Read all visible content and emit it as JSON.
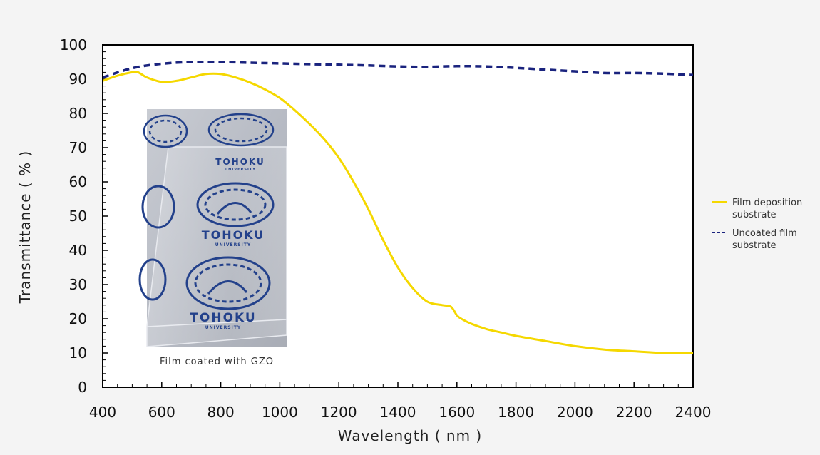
{
  "chart_data": {
    "type": "line",
    "xlabel": "Wavelength ( nm )",
    "ylabel": "Transmittance ( % )",
    "xlim": [
      400,
      2400
    ],
    "ylim": [
      0,
      100
    ],
    "xticks": [
      400,
      600,
      800,
      1000,
      1200,
      1400,
      1600,
      1800,
      2000,
      2200,
      2400
    ],
    "yticks": [
      0,
      10,
      20,
      30,
      40,
      50,
      60,
      70,
      80,
      90,
      100
    ],
    "grid": false,
    "legend_position": "right",
    "series": [
      {
        "name": "Film deposition substrate",
        "legend_lines": [
          "Film deposition",
          "substrate"
        ],
        "color": "#f5d800",
        "style": "solid",
        "x": [
          400,
          450,
          500,
          520,
          550,
          600,
          650,
          700,
          750,
          800,
          850,
          900,
          950,
          1000,
          1050,
          1100,
          1150,
          1200,
          1250,
          1300,
          1350,
          1400,
          1450,
          1500,
          1550,
          1580,
          1600,
          1615,
          1650,
          1700,
          1750,
          1800,
          1900,
          2000,
          2100,
          2200,
          2300,
          2400
        ],
        "y": [
          89.5,
          91,
          92,
          92,
          90.5,
          89.2,
          89.5,
          90.5,
          91.5,
          91.5,
          90.5,
          89,
          87,
          84.5,
          81,
          77,
          72.5,
          67,
          60,
          52,
          43,
          35,
          29,
          25,
          24,
          23.5,
          21,
          20,
          18.5,
          17,
          16,
          15,
          13.5,
          12,
          11,
          10.5,
          10,
          10
        ]
      },
      {
        "name": "Uncoated film substrate",
        "legend_lines": [
          "Uncoated film",
          "substrate"
        ],
        "color": "#1a237e",
        "style": "dashed",
        "x": [
          400,
          500,
          600,
          700,
          800,
          900,
          1000,
          1100,
          1200,
          1300,
          1400,
          1500,
          1600,
          1700,
          1800,
          1900,
          2000,
          2100,
          2200,
          2300,
          2400
        ],
        "y": [
          90.5,
          93.2,
          94.5,
          95,
          95,
          94.8,
          94.6,
          94.4,
          94.2,
          94,
          93.7,
          93.6,
          93.8,
          93.7,
          93.3,
          92.8,
          92.3,
          91.8,
          91.8,
          91.6,
          91.2
        ]
      }
    ],
    "inset": {
      "caption": "Film coated with GZO",
      "logo_text": "TOHOKU",
      "logo_subtext": "UNIVERSITY"
    }
  }
}
